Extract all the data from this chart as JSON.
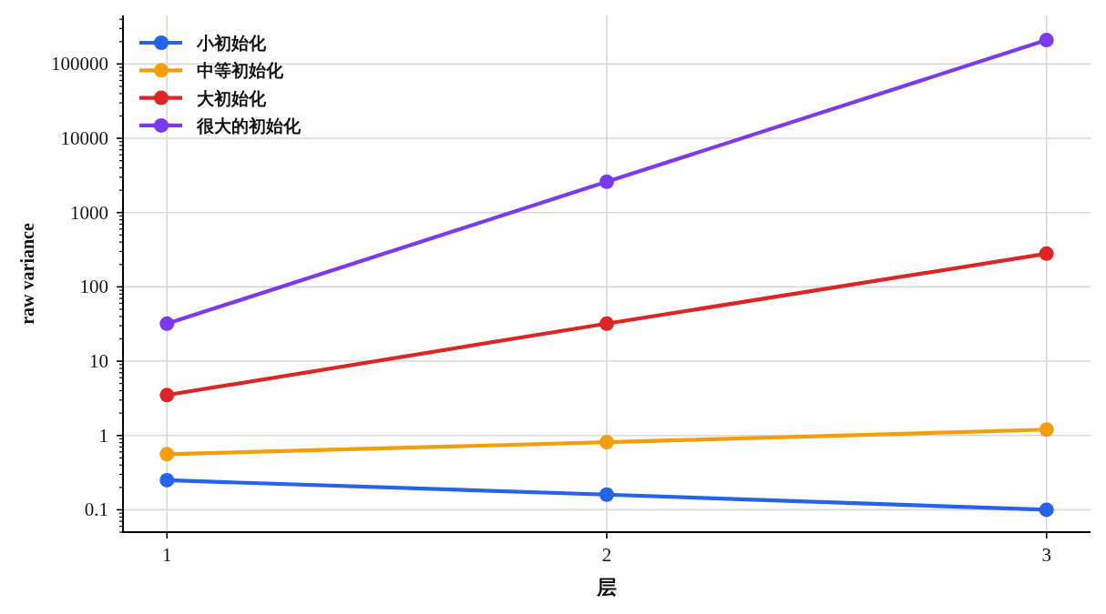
{
  "chart_data": {
    "type": "line",
    "x": [
      1,
      2,
      3
    ],
    "series": [
      {
        "name": "小初始化",
        "color": "#2563eb",
        "values": [
          0.25,
          0.16,
          0.1
        ]
      },
      {
        "name": "中等初始化",
        "color": "#f59e0b",
        "values": [
          0.56,
          0.81,
          1.2
        ]
      },
      {
        "name": "大初始化",
        "color": "#dc2626",
        "values": [
          3.5,
          32,
          280
        ]
      },
      {
        "name": "很大的初始化",
        "color": "#7c3aed",
        "values": [
          32,
          2600,
          210000
        ]
      }
    ],
    "xlabel": "层",
    "ylabel": "raw variance",
    "log": "y",
    "xlim": [
      0.9,
      3.1
    ],
    "ylim": [
      0.05,
      450000
    ],
    "xticks": [
      1,
      2,
      3
    ],
    "yticks": [
      0.1,
      1,
      10,
      100,
      1000,
      10000,
      100000
    ],
    "grid": true,
    "legend": "top left",
    "marker": "circle",
    "line_style": "solid"
  }
}
